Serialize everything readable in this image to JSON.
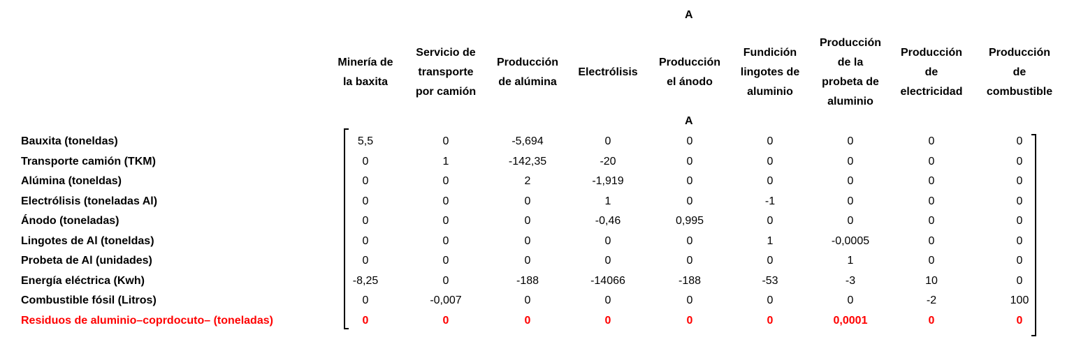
{
  "top_title": "A",
  "matrix_title": "A",
  "columns": [
    "Minería de la baxita",
    "Servicio de transporte por camión",
    "Producción de alúmina",
    "Electrólisis",
    "Producción el ánodo",
    "Fundición lingotes de aluminio",
    "Producción de la probeta de aluminio",
    "Producción de electricidad",
    "Producción de combustible"
  ],
  "rows": [
    {
      "label": "Bauxita (toneldas)",
      "values": [
        "5,5",
        "0",
        "-5,694",
        "0",
        "0",
        "0",
        "0",
        "0",
        "0"
      ],
      "color": "#000000"
    },
    {
      "label": "Transporte camión (TKM)",
      "values": [
        "0",
        "1",
        "-142,35",
        "-20",
        "0",
        "0",
        "0",
        "0",
        "0"
      ],
      "color": "#000000"
    },
    {
      "label": "Alúmina (toneldas)",
      "values": [
        "0",
        "0",
        "2",
        "-1,919",
        "0",
        "0",
        "0",
        "0",
        "0"
      ],
      "color": "#000000"
    },
    {
      "label": "Electrólisis (toneladas Al)",
      "values": [
        "0",
        "0",
        "0",
        "1",
        "0",
        "-1",
        "0",
        "0",
        "0"
      ],
      "color": "#000000"
    },
    {
      "label": "Ánodo (toneladas)",
      "values": [
        "0",
        "0",
        "0",
        "-0,46",
        "0,995",
        "0",
        "0",
        "0",
        "0"
      ],
      "color": "#000000"
    },
    {
      "label": "Lingotes de Al (toneldas)",
      "values": [
        "0",
        "0",
        "0",
        "0",
        "0",
        "1",
        "-0,0005",
        "0",
        "0"
      ],
      "color": "#000000"
    },
    {
      "label": "Probeta de Al (unidades)",
      "values": [
        "0",
        "0",
        "0",
        "0",
        "0",
        "0",
        "1",
        "0",
        "0"
      ],
      "color": "#000000"
    },
    {
      "label": "Energía eléctrica (Kwh)",
      "values": [
        "-8,25",
        "0",
        "-188",
        "-14066",
        "-188",
        "-53",
        "-3",
        "10",
        "0"
      ],
      "color": "#000000"
    },
    {
      "label": "Combustible fósil (Litros)",
      "values": [
        "0",
        "-0,007",
        "0",
        "0",
        "0",
        "0",
        "0",
        "-2",
        "100"
      ],
      "color": "#000000"
    },
    {
      "label": "Residuos de aluminio–coprdocuto– (toneladas)",
      "values": [
        "0",
        "0",
        "0",
        "0",
        "0",
        "0",
        "0,0001",
        "0",
        "0"
      ],
      "color": "#ff0000"
    }
  ]
}
